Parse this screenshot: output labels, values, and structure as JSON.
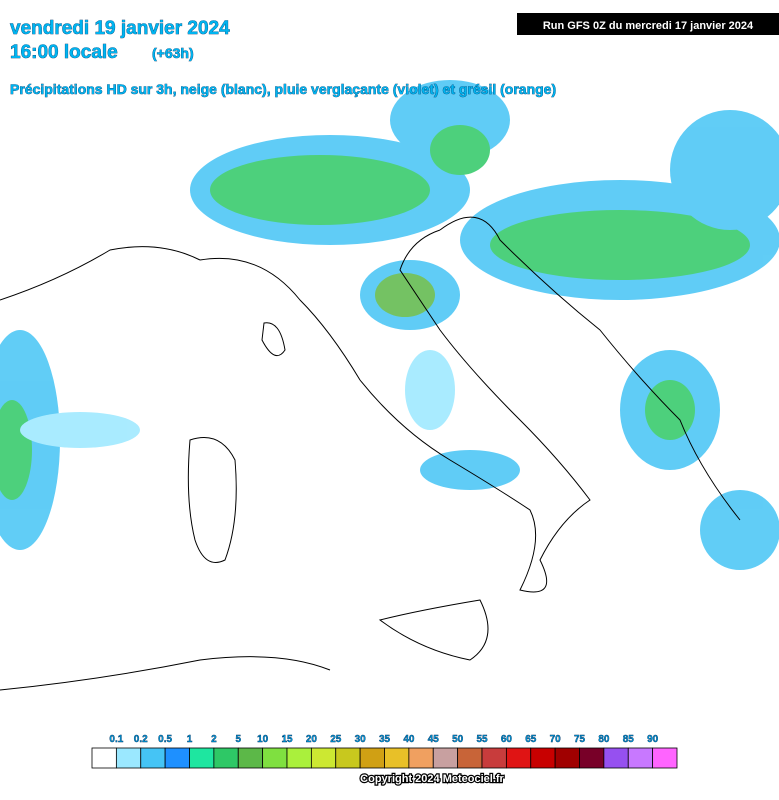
{
  "header": {
    "date": "vendredi 19 janvier 2024",
    "time": "16:00 locale",
    "lead": "(+63h)",
    "subtitle": "Précipitations HD sur 3h, neige (blanc), pluie verglaçante (violet) et grésil (orange)",
    "run": "Run GFS 0Z du mercredi 17 janvier 2024"
  },
  "legend": {
    "labels": [
      "0.1",
      "0.2",
      "0.5",
      "1",
      "2",
      "5",
      "10",
      "15",
      "20",
      "25",
      "30",
      "35",
      "40",
      "45",
      "50",
      "55",
      "60",
      "65",
      "70",
      "75",
      "80",
      "85",
      "90"
    ],
    "colors": [
      "#ffffff",
      "#9be8ff",
      "#45c4f5",
      "#1e90ff",
      "#1ee6a0",
      "#2ec866",
      "#5cb848",
      "#7fe040",
      "#aaf03c",
      "#cce832",
      "#c8c81e",
      "#d0a014",
      "#e8c028",
      "#f0a060",
      "#c8a0a0",
      "#c86438",
      "#c83c3c",
      "#e01414",
      "#c80000",
      "#a00000",
      "#780028",
      "#9650f0",
      "#c878ff",
      "#ff64ff"
    ],
    "copyright": "Copyright 2024 Meteociel.fr"
  }
}
